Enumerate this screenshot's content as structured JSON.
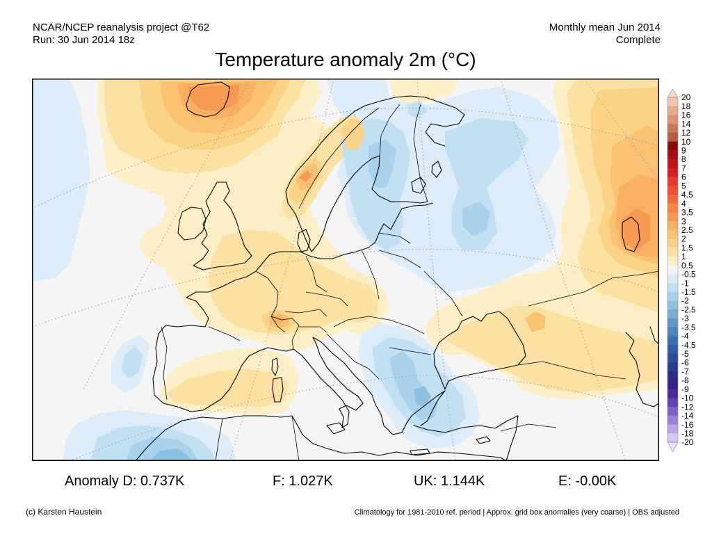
{
  "header": {
    "source": "NCAR/NCEP reanalysis project @T62",
    "run": "Run: 30 Jun 2014 18z",
    "period": "Monthly mean Jun 2014",
    "status": "Complete",
    "title": "Temperature anomaly 2m (°C)"
  },
  "stats": [
    {
      "label": "Anomaly D:",
      "value": "0.737K"
    },
    {
      "label": "F:",
      "value": "1.027K"
    },
    {
      "label": "UK:",
      "value": "1.144K"
    },
    {
      "label": "E:",
      "value": "-0.00K"
    }
  ],
  "footer": {
    "credit": "(c) Karsten Haustein",
    "note": "Climatology for 1981-2010 ref. period | Approx. grid box anomalies (very coarse) | OBS adjusted"
  },
  "colorbar": {
    "labels": [
      "20",
      "18",
      "16",
      "14",
      "12",
      "10",
      "9",
      "8",
      "7",
      "6",
      "5",
      "4.5",
      "4",
      "3.5",
      "3",
      "2.5",
      "2",
      "1.5",
      "1",
      "0.5",
      "-0.5",
      "-1",
      "-1.5",
      "-2",
      "-2.5",
      "-3",
      "-3.5",
      "-4",
      "-4.5",
      "-5",
      "-6",
      "-7",
      "-8",
      "-9",
      "-10",
      "-12",
      "-14",
      "-16",
      "-18",
      "-20"
    ],
    "colors": [
      "#f2c3ad",
      "#e9ab8f",
      "#df9373",
      "#c97858",
      "#b45f42",
      "#8c0a0a",
      "#a50f0f",
      "#c01515",
      "#d82020",
      "#e83a2a",
      "#f05030",
      "#f3693a",
      "#f58445",
      "#f69a52",
      "#f8b062",
      "#f9c272",
      "#fad386",
      "#fbe2a4",
      "#fcefc6",
      "#f4f4f4",
      "#dcecf8",
      "#c2e0f3",
      "#a8d1ea",
      "#8ec0e0",
      "#75add5",
      "#5e99c9",
      "#4a85bc",
      "#3b71b0",
      "#305ea3",
      "#2b4c97",
      "#293d8c",
      "#2a2e80",
      "#35228a",
      "#4a2a99",
      "#6440b0",
      "#8060c4",
      "#9c82d6",
      "#b9a6e6",
      "#d3c8f2"
    ],
    "over_color": "#f8d8c8",
    "under_color": "#e6e0fa"
  }
}
